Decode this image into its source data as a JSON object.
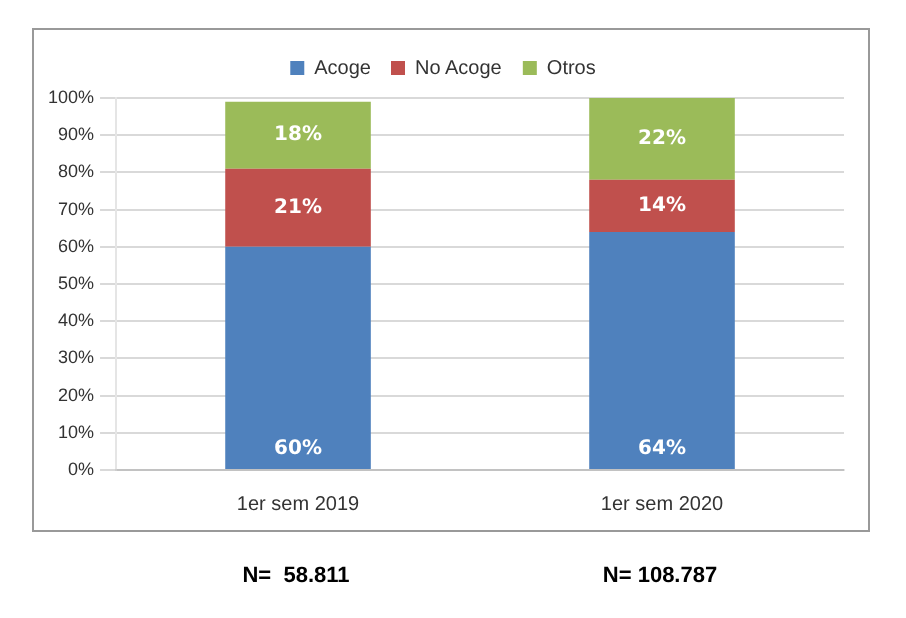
{
  "chart_data": {
    "type": "bar",
    "stacked": true,
    "categories": [
      "1er sem 2019",
      "1er sem 2020"
    ],
    "series": [
      {
        "name": "Acoge",
        "color": "#4f81bd",
        "values": [
          60,
          64
        ],
        "value_labels": [
          "60%",
          "64%"
        ]
      },
      {
        "name": "No Acoge",
        "color": "#c0504d",
        "values": [
          21,
          14
        ],
        "value_labels": [
          "21%",
          "14%"
        ]
      },
      {
        "name": "Otros",
        "color": "#9bbb59",
        "values": [
          18,
          22
        ],
        "value_labels": [
          "18%",
          "22%"
        ]
      }
    ],
    "ylim": [
      0,
      100
    ],
    "yticks": [
      {
        "value": 0,
        "label": "0%"
      },
      {
        "value": 10,
        "label": "10%"
      },
      {
        "value": 20,
        "label": "20%"
      },
      {
        "value": 30,
        "label": "30%"
      },
      {
        "value": 40,
        "label": "40%"
      },
      {
        "value": 50,
        "label": "50%"
      },
      {
        "value": 60,
        "label": "60%"
      },
      {
        "value": 70,
        "label": "70%"
      },
      {
        "value": 80,
        "label": "80%"
      },
      {
        "value": 90,
        "label": "90%"
      },
      {
        "value": 100,
        "label": "100%"
      }
    ],
    "grid": "y",
    "legend": "top",
    "annotations": [
      "N=  58.811",
      "N= 108.787"
    ]
  }
}
